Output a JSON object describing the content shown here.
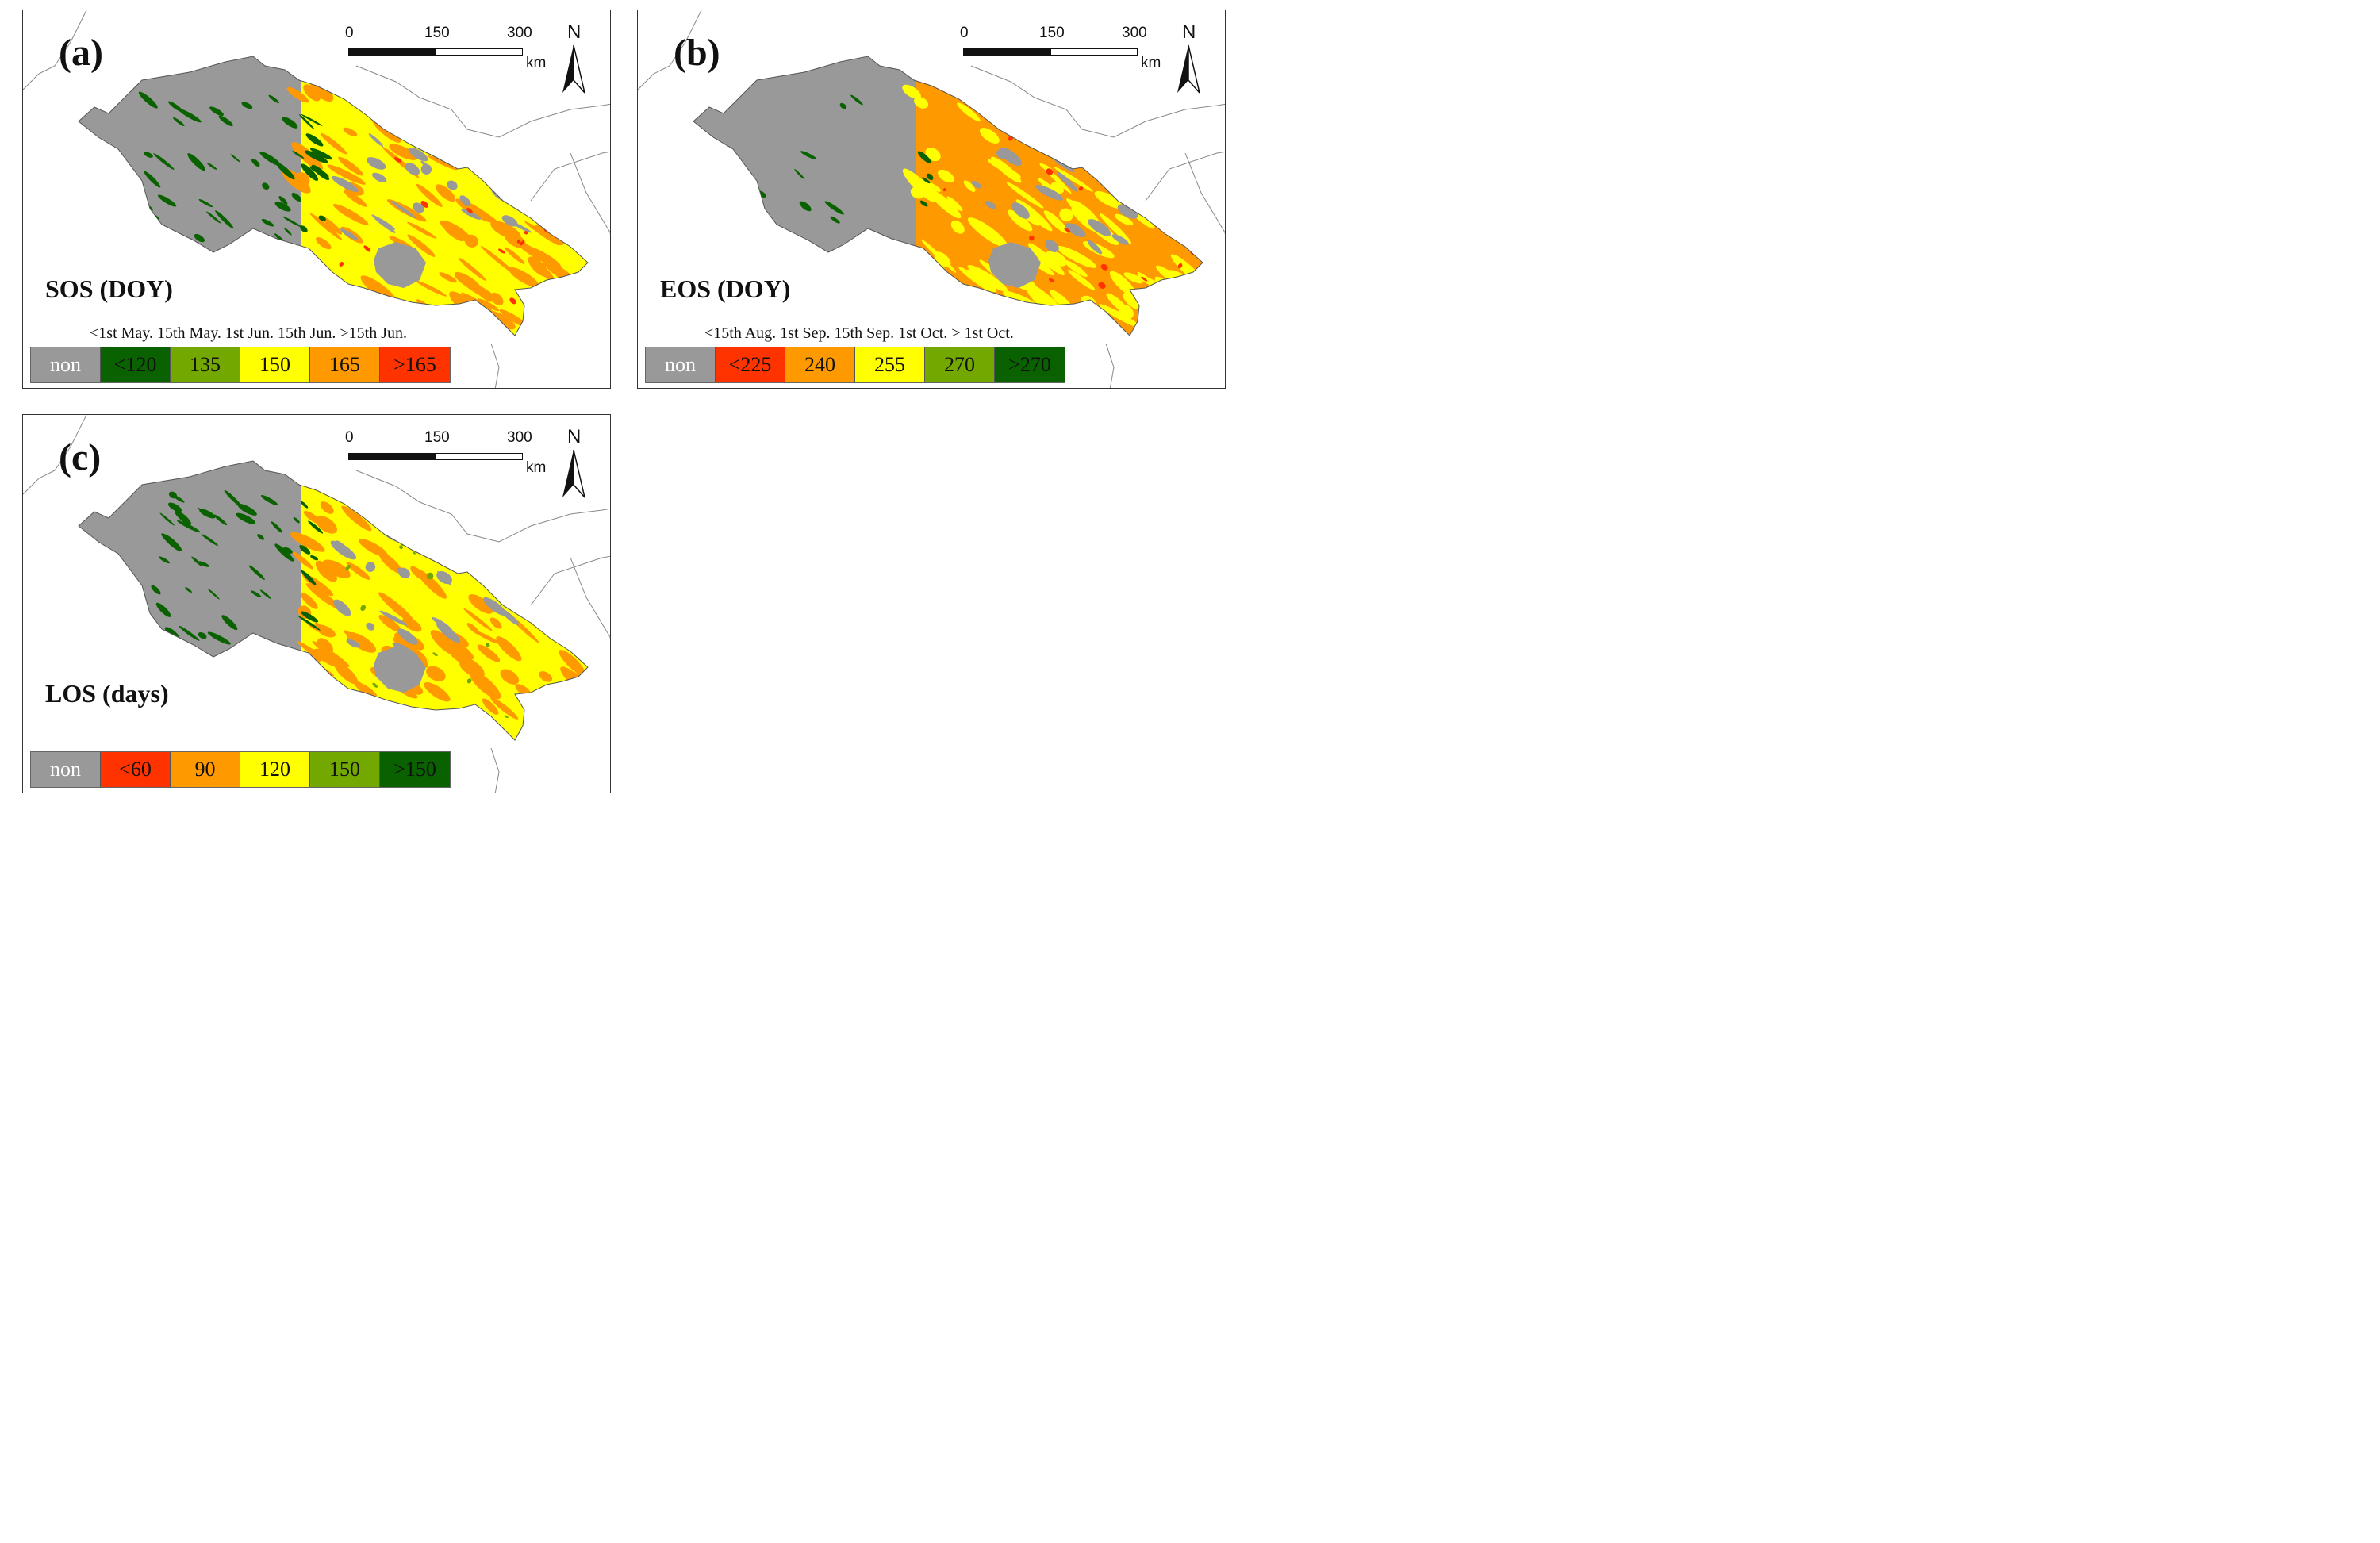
{
  "panels": [
    {
      "label": "(a)",
      "title": "SOS (DOY)",
      "scale": {
        "zero": "0",
        "mid": "150",
        "max": "300",
        "unit": "km"
      },
      "north": "N",
      "legend_dates": "<1st May. 15th May. 1st Jun. 15th Jun. >15th Jun.",
      "legend": [
        {
          "label": "non",
          "color": "#999999",
          "text_color": "light"
        },
        {
          "label": "<120",
          "color": "#0a6100",
          "text_color": "dark"
        },
        {
          "label": "135",
          "color": "#73a800",
          "text_color": "dark"
        },
        {
          "label": "150",
          "color": "#ffff00",
          "text_color": "dark"
        },
        {
          "label": "165",
          "color": "#ff9900",
          "text_color": "dark"
        },
        {
          "label": ">165",
          "color": "#ff3300",
          "text_color": "dark"
        }
      ],
      "map_colors": {
        "west": "#999999",
        "west_patches": "#0a6100",
        "east_base": "#ffff00",
        "east_patches": "#ff9900",
        "accent": "#ff3300"
      }
    },
    {
      "label": "(b)",
      "title": "EOS (DOY)",
      "scale": {
        "zero": "0",
        "mid": "150",
        "max": "300",
        "unit": "km"
      },
      "north": "N",
      "legend_dates": "<15th Aug. 1st Sep. 15th Sep. 1st Oct. > 1st Oct.",
      "legend": [
        {
          "label": "non",
          "color": "#999999",
          "text_color": "light"
        },
        {
          "label": "<225",
          "color": "#ff3300",
          "text_color": "dark"
        },
        {
          "label": "240",
          "color": "#ff9900",
          "text_color": "dark"
        },
        {
          "label": "255",
          "color": "#ffff00",
          "text_color": "dark"
        },
        {
          "label": "270",
          "color": "#73a800",
          "text_color": "dark"
        },
        {
          "label": ">270",
          "color": "#0a6100",
          "text_color": "dark"
        }
      ],
      "map_colors": {
        "west": "#999999",
        "west_patches": "#0a6100",
        "east_base": "#ff9900",
        "east_patches": "#ffff00",
        "accent": "#ff3300"
      }
    },
    {
      "label": "(c)",
      "title": "LOS (days)",
      "scale": {
        "zero": "0",
        "mid": "150",
        "max": "300",
        "unit": "km"
      },
      "north": "N",
      "legend_dates": "",
      "legend": [
        {
          "label": "non",
          "color": "#999999",
          "text_color": "light"
        },
        {
          "label": "<60",
          "color": "#ff3300",
          "text_color": "dark"
        },
        {
          "label": "90",
          "color": "#ff9900",
          "text_color": "dark"
        },
        {
          "label": "120",
          "color": "#ffff00",
          "text_color": "dark"
        },
        {
          "label": "150",
          "color": "#73a800",
          "text_color": "dark"
        },
        {
          "label": ">150",
          "color": "#0a6100",
          "text_color": "dark"
        }
      ],
      "map_colors": {
        "west": "#999999",
        "west_patches": "#0a6100",
        "east_base": "#ffff00",
        "east_patches": "#ff9900",
        "accent": "#73a800"
      }
    }
  ]
}
